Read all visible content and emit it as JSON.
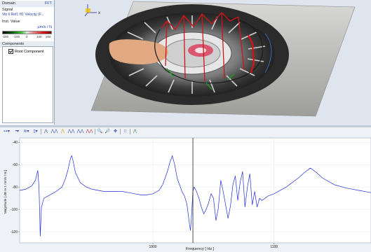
{
  "panel": {
    "domain_label": "Domain",
    "domain_value": "FFT",
    "signal_label": "Signal",
    "signal_value": "Vib 6:Ref1 H1 Velocity (F...",
    "inst_label": "Inst. Value",
    "inst_unit": "µm/s / N",
    "colorbar_ticks": [
      "-200",
      "-100",
      "0",
      "100",
      "200"
    ],
    "components_label": "Components",
    "root_component": "Root Component"
  },
  "axis_triad": {
    "x_label": "x"
  },
  "toolbar": {
    "buttons": [
      "⊶▾",
      "•▾",
      "≋▾",
      "▯▾",
      "⋀",
      "⋀⋀",
      "⋀",
      "⋀⋀",
      "⋀⋀",
      "⋀⋀",
      "🔍",
      "🔎",
      "✥",
      "⁝⁝",
      "⋀"
    ]
  },
  "chart_data": {
    "type": "line",
    "ylabel": "Magnitude [ dB re 1 mm/s / N ]",
    "xlabel": "Frequency [ Hz ]",
    "x_ticks": [
      1000,
      1100
    ],
    "y_ticks": [
      -40,
      -60,
      -80,
      -100,
      -120
    ],
    "xlim": [
      890,
      1180
    ],
    "ylim": [
      -130,
      -36
    ],
    "cursor_x": 1033,
    "line_color": "#1f2fd6",
    "series": [
      {
        "x": [
          890,
          895,
          900,
          903,
          905,
          906,
          907,
          908,
          910,
          915,
          920,
          925,
          928,
          930,
          932,
          933,
          934,
          936,
          940,
          945,
          950,
          955,
          960,
          965,
          970,
          975,
          980,
          985,
          990,
          995,
          1000,
          1005,
          1008,
          1012,
          1014,
          1016,
          1018,
          1020,
          1022,
          1024,
          1026,
          1028,
          1029,
          1030,
          1031,
          1032,
          1033,
          1034,
          1036,
          1038,
          1040,
          1042,
          1044,
          1046,
          1048,
          1050,
          1052,
          1054,
          1056,
          1058,
          1060,
          1062,
          1064,
          1066,
          1068,
          1070,
          1072,
          1074,
          1076,
          1078,
          1080,
          1082,
          1084,
          1086,
          1088,
          1090,
          1095,
          1100,
          1110,
          1120,
          1125,
          1130,
          1135,
          1140,
          1150,
          1160,
          1170,
          1180
        ],
        "y": [
          -83,
          -82,
          -79,
          -74,
          -65,
          -80,
          -124,
          -98,
          -90,
          -87,
          -84,
          -80,
          -72,
          -64,
          -54,
          -52,
          -56,
          -67,
          -76,
          -80,
          -82,
          -83,
          -84,
          -84,
          -84,
          -84,
          -85,
          -86,
          -87,
          -87,
          -86,
          -83,
          -78,
          -66,
          -58,
          -52,
          -60,
          -72,
          -78,
          -84,
          -88,
          -95,
          -103,
          -112,
          -119,
          -104,
          -84,
          -80,
          -84,
          -90,
          -98,
          -104,
          -100,
          -94,
          -86,
          -90,
          -110,
          -99,
          -74,
          -84,
          -96,
          -108,
          -97,
          -78,
          -70,
          -92,
          -76,
          -66,
          -98,
          -80,
          -68,
          -96,
          -84,
          -98,
          -90,
          -92,
          -88,
          -86,
          -80,
          -72,
          -67,
          -63,
          -67,
          -72,
          -78,
          -81,
          -83,
          -85
        ]
      }
    ]
  }
}
